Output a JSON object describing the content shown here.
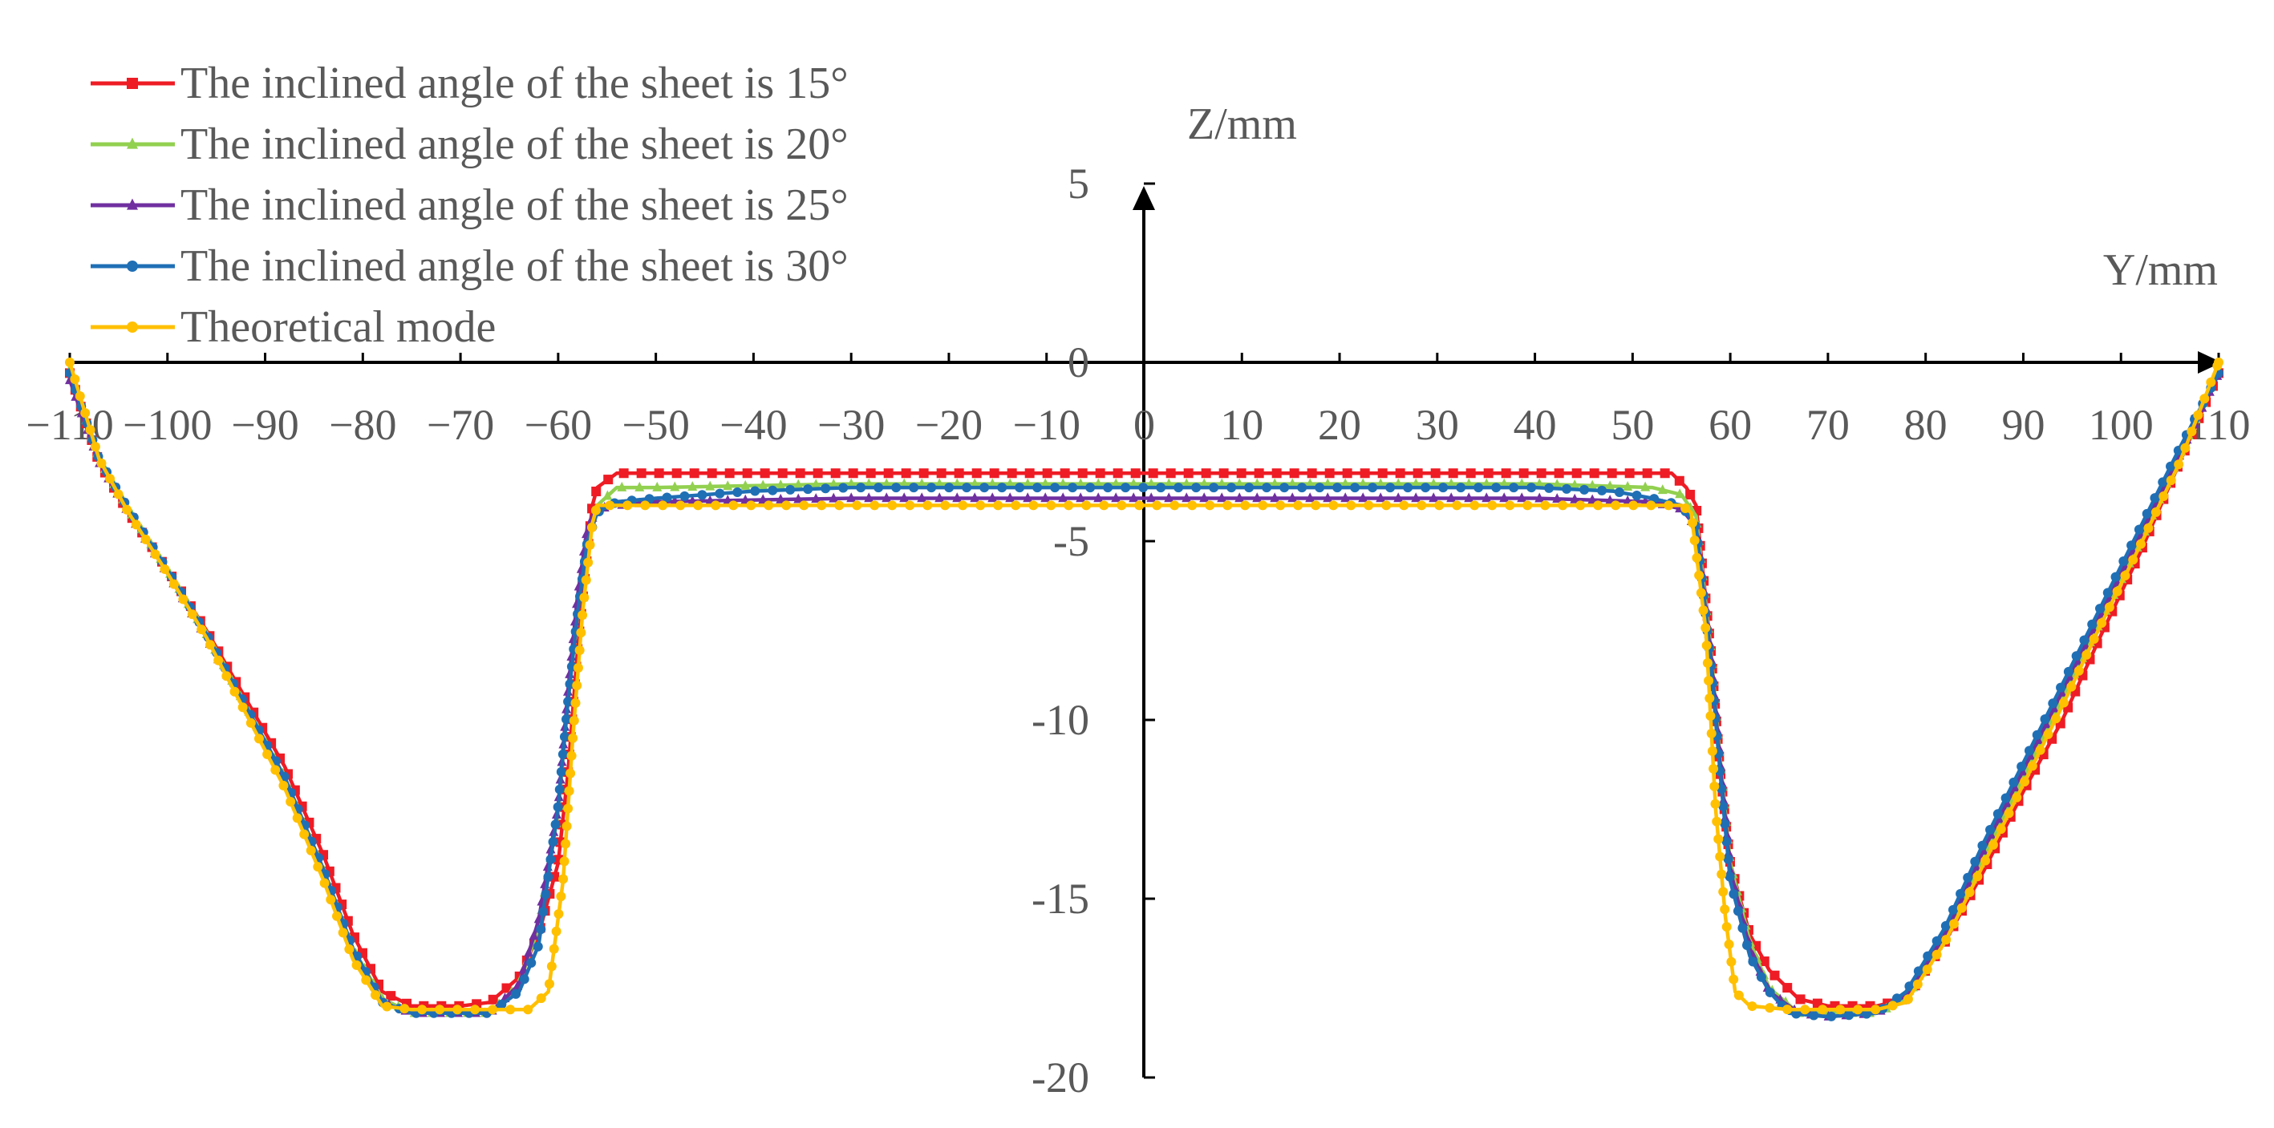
{
  "chart_data": {
    "type": "line",
    "title": "",
    "xlabel": "Y/mm",
    "ylabel": "Z/mm",
    "xlim": [
      -110,
      110
    ],
    "ylim": [
      -20,
      5
    ],
    "x_ticks": [
      -110,
      -100,
      -90,
      -80,
      -70,
      -60,
      -50,
      -40,
      -30,
      -20,
      -10,
      0,
      10,
      20,
      30,
      40,
      50,
      60,
      70,
      80,
      90,
      100,
      110
    ],
    "y_ticks": [
      5,
      0,
      -5,
      -10,
      -15,
      -20
    ],
    "grid": false,
    "legend_position": "top-left",
    "series": [
      {
        "name": "The inclined angle of the sheet is 15°",
        "color": "#ee1c25",
        "marker": "square",
        "points": [
          [
            -110,
            -0.3
          ],
          [
            -107,
            -2.8
          ],
          [
            -104,
            -4.2
          ],
          [
            -100,
            -5.8
          ],
          [
            -96,
            -7.5
          ],
          [
            -92,
            -9.4
          ],
          [
            -88,
            -11.3
          ],
          [
            -84,
            -13.8
          ],
          [
            -81,
            -16.0
          ],
          [
            -78,
            -17.6
          ],
          [
            -75,
            -18.0
          ],
          [
            -70,
            -18.0
          ],
          [
            -67,
            -17.9
          ],
          [
            -64,
            -17.2
          ],
          [
            -62,
            -16.0
          ],
          [
            -60,
            -14.0
          ],
          [
            -59,
            -11.5
          ],
          [
            -58,
            -8.0
          ],
          [
            -56.5,
            -4.0
          ],
          [
            -56,
            -3.5
          ],
          [
            -54,
            -3.1
          ],
          [
            -50,
            -3.1
          ],
          [
            -30,
            -3.1
          ],
          [
            -10,
            -3.1
          ],
          [
            0,
            -3.1
          ],
          [
            20,
            -3.1
          ],
          [
            40,
            -3.1
          ],
          [
            54,
            -3.1
          ],
          [
            55.5,
            -3.5
          ],
          [
            56.5,
            -4.0
          ],
          [
            58,
            -8.0
          ],
          [
            59,
            -11.5
          ],
          [
            60,
            -14.0
          ],
          [
            62,
            -16.0
          ],
          [
            64,
            -17.0
          ],
          [
            67,
            -17.8
          ],
          [
            70,
            -18.0
          ],
          [
            75,
            -18.0
          ],
          [
            78,
            -17.8
          ],
          [
            82,
            -16.2
          ],
          [
            86,
            -14.2
          ],
          [
            90,
            -12.0
          ],
          [
            94,
            -10.0
          ],
          [
            98,
            -7.6
          ],
          [
            102,
            -5.3
          ],
          [
            106,
            -2.8
          ],
          [
            110,
            -0.3
          ]
        ]
      },
      {
        "name": "The inclined angle of the sheet is 20°",
        "color": "#92d050",
        "marker": "triangle",
        "points": [
          [
            -110,
            -0.2
          ],
          [
            -107,
            -2.7
          ],
          [
            -104,
            -4.1
          ],
          [
            -100,
            -5.8
          ],
          [
            -96,
            -7.6
          ],
          [
            -92,
            -9.6
          ],
          [
            -88,
            -11.6
          ],
          [
            -84,
            -14.2
          ],
          [
            -81,
            -16.4
          ],
          [
            -78,
            -17.8
          ],
          [
            -75,
            -18.2
          ],
          [
            -70,
            -18.2
          ],
          [
            -67,
            -18.2
          ],
          [
            -64,
            -17.4
          ],
          [
            -62,
            -15.8
          ],
          [
            -60,
            -12.6
          ],
          [
            -59,
            -9.5
          ],
          [
            -58,
            -7.0
          ],
          [
            -57,
            -4.8
          ],
          [
            -56,
            -4.0
          ],
          [
            -54,
            -3.5
          ],
          [
            -50,
            -3.5
          ],
          [
            -30,
            -3.4
          ],
          [
            -10,
            -3.4
          ],
          [
            0,
            -3.4
          ],
          [
            20,
            -3.4
          ],
          [
            40,
            -3.4
          ],
          [
            52,
            -3.5
          ],
          [
            55,
            -3.7
          ],
          [
            56.5,
            -4.3
          ],
          [
            58,
            -8.0
          ],
          [
            59,
            -11.2
          ],
          [
            60,
            -14.0
          ],
          [
            62,
            -16.2
          ],
          [
            64,
            -17.5
          ],
          [
            67,
            -18.2
          ],
          [
            70,
            -18.2
          ],
          [
            75,
            -18.2
          ],
          [
            78,
            -17.8
          ],
          [
            82,
            -16.0
          ],
          [
            86,
            -13.8
          ],
          [
            90,
            -11.6
          ],
          [
            94,
            -9.4
          ],
          [
            98,
            -7.2
          ],
          [
            102,
            -5.0
          ],
          [
            106,
            -2.6
          ],
          [
            110,
            -0.2
          ]
        ]
      },
      {
        "name": "The inclined angle of the sheet is 25°",
        "color": "#7030a0",
        "marker": "triangle",
        "points": [
          [
            -110,
            -0.5
          ],
          [
            -107,
            -2.8
          ],
          [
            -104,
            -4.2
          ],
          [
            -100,
            -5.9
          ],
          [
            -96,
            -7.7
          ],
          [
            -92,
            -9.7
          ],
          [
            -88,
            -11.7
          ],
          [
            -84,
            -14.3
          ],
          [
            -81,
            -16.5
          ],
          [
            -78,
            -17.9
          ],
          [
            -75,
            -18.2
          ],
          [
            -70,
            -18.2
          ],
          [
            -67,
            -18.2
          ],
          [
            -64,
            -17.4
          ],
          [
            -62,
            -15.6
          ],
          [
            -60,
            -12.4
          ],
          [
            -59,
            -9.2
          ],
          [
            -58,
            -6.5
          ],
          [
            -57,
            -4.6
          ],
          [
            -56,
            -4.1
          ],
          [
            -54,
            -4.0
          ],
          [
            -50,
            -3.9
          ],
          [
            -30,
            -3.8
          ],
          [
            -10,
            -3.8
          ],
          [
            0,
            -3.8
          ],
          [
            20,
            -3.8
          ],
          [
            40,
            -3.8
          ],
          [
            52,
            -3.9
          ],
          [
            55,
            -4.1
          ],
          [
            56.5,
            -4.6
          ],
          [
            58,
            -8.2
          ],
          [
            59,
            -11.4
          ],
          [
            60,
            -14.2
          ],
          [
            62,
            -16.4
          ],
          [
            64,
            -17.6
          ],
          [
            67,
            -18.2
          ],
          [
            70,
            -18.3
          ],
          [
            75,
            -18.2
          ],
          [
            78,
            -17.7
          ],
          [
            82,
            -16.0
          ],
          [
            86,
            -13.6
          ],
          [
            90,
            -11.4
          ],
          [
            94,
            -9.2
          ],
          [
            98,
            -7.0
          ],
          [
            102,
            -4.8
          ],
          [
            106,
            -2.6
          ],
          [
            110,
            -0.3
          ]
        ]
      },
      {
        "name": "The inclined angle of the sheet is 30°",
        "color": "#1f6fb5",
        "marker": "circle",
        "points": [
          [
            -110,
            -0.3
          ],
          [
            -107,
            -2.7
          ],
          [
            -104,
            -4.1
          ],
          [
            -100,
            -5.8
          ],
          [
            -96,
            -7.6
          ],
          [
            -92,
            -9.6
          ],
          [
            -88,
            -11.6
          ],
          [
            -84,
            -14.2
          ],
          [
            -81,
            -16.4
          ],
          [
            -78,
            -17.9
          ],
          [
            -75,
            -18.2
          ],
          [
            -70,
            -18.2
          ],
          [
            -67,
            -18.2
          ],
          [
            -64,
            -17.6
          ],
          [
            -62,
            -16.3
          ],
          [
            -60,
            -12.4
          ],
          [
            -59,
            -9.5
          ],
          [
            -58,
            -7.0
          ],
          [
            -57,
            -5.0
          ],
          [
            -56,
            -4.2
          ],
          [
            -54,
            -3.9
          ],
          [
            -50,
            -3.8
          ],
          [
            -40,
            -3.6
          ],
          [
            -30,
            -3.5
          ],
          [
            -10,
            -3.5
          ],
          [
            0,
            -3.5
          ],
          [
            20,
            -3.5
          ],
          [
            40,
            -3.5
          ],
          [
            48,
            -3.6
          ],
          [
            52,
            -3.8
          ],
          [
            55,
            -4.0
          ],
          [
            56.5,
            -4.6
          ],
          [
            58,
            -8.4
          ],
          [
            59,
            -11.6
          ],
          [
            60,
            -14.5
          ],
          [
            62,
            -16.6
          ],
          [
            64,
            -17.6
          ],
          [
            66,
            -18.2
          ],
          [
            70,
            -18.3
          ],
          [
            75,
            -18.2
          ],
          [
            78,
            -17.6
          ],
          [
            82,
            -15.8
          ],
          [
            86,
            -13.4
          ],
          [
            90,
            -11.2
          ],
          [
            94,
            -9.0
          ],
          [
            98,
            -6.8
          ],
          [
            102,
            -4.6
          ],
          [
            106,
            -2.4
          ],
          [
            110,
            -0.3
          ]
        ]
      },
      {
        "name": "Theoretical mode",
        "color": "#ffc000",
        "marker": "circle",
        "points": [
          [
            -110,
            0.0
          ],
          [
            -107,
            -2.7
          ],
          [
            -104,
            -4.2
          ],
          [
            -100,
            -5.9
          ],
          [
            -96,
            -7.7
          ],
          [
            -92,
            -9.8
          ],
          [
            -88,
            -11.9
          ],
          [
            -84,
            -14.5
          ],
          [
            -81,
            -16.7
          ],
          [
            -78,
            -18.0
          ],
          [
            -75,
            -18.1
          ],
          [
            -70,
            -18.1
          ],
          [
            -66,
            -18.1
          ],
          [
            -63,
            -18.1
          ],
          [
            -61,
            -17.6
          ],
          [
            -59.5,
            -14.5
          ],
          [
            -58.5,
            -10.5
          ],
          [
            -57.5,
            -7.0
          ],
          [
            -56.5,
            -4.5
          ],
          [
            -56,
            -4.0
          ],
          [
            -50,
            -4.0
          ],
          [
            -30,
            -4.0
          ],
          [
            -10,
            -4.0
          ],
          [
            0,
            -4.0
          ],
          [
            20,
            -4.0
          ],
          [
            40,
            -4.0
          ],
          [
            55,
            -4.0
          ],
          [
            56,
            -4.2
          ],
          [
            57.5,
            -7.5
          ],
          [
            58.5,
            -12.5
          ],
          [
            59.5,
            -15.5
          ],
          [
            60.5,
            -17.6
          ],
          [
            62,
            -18.0
          ],
          [
            66,
            -18.1
          ],
          [
            70,
            -18.1
          ],
          [
            75,
            -18.1
          ],
          [
            78,
            -17.9
          ],
          [
            82,
            -16.2
          ],
          [
            86,
            -14.0
          ],
          [
            90,
            -11.8
          ],
          [
            94,
            -9.6
          ],
          [
            98,
            -7.3
          ],
          [
            102,
            -5.1
          ],
          [
            106,
            -2.8
          ],
          [
            110,
            0.0
          ]
        ]
      }
    ]
  }
}
